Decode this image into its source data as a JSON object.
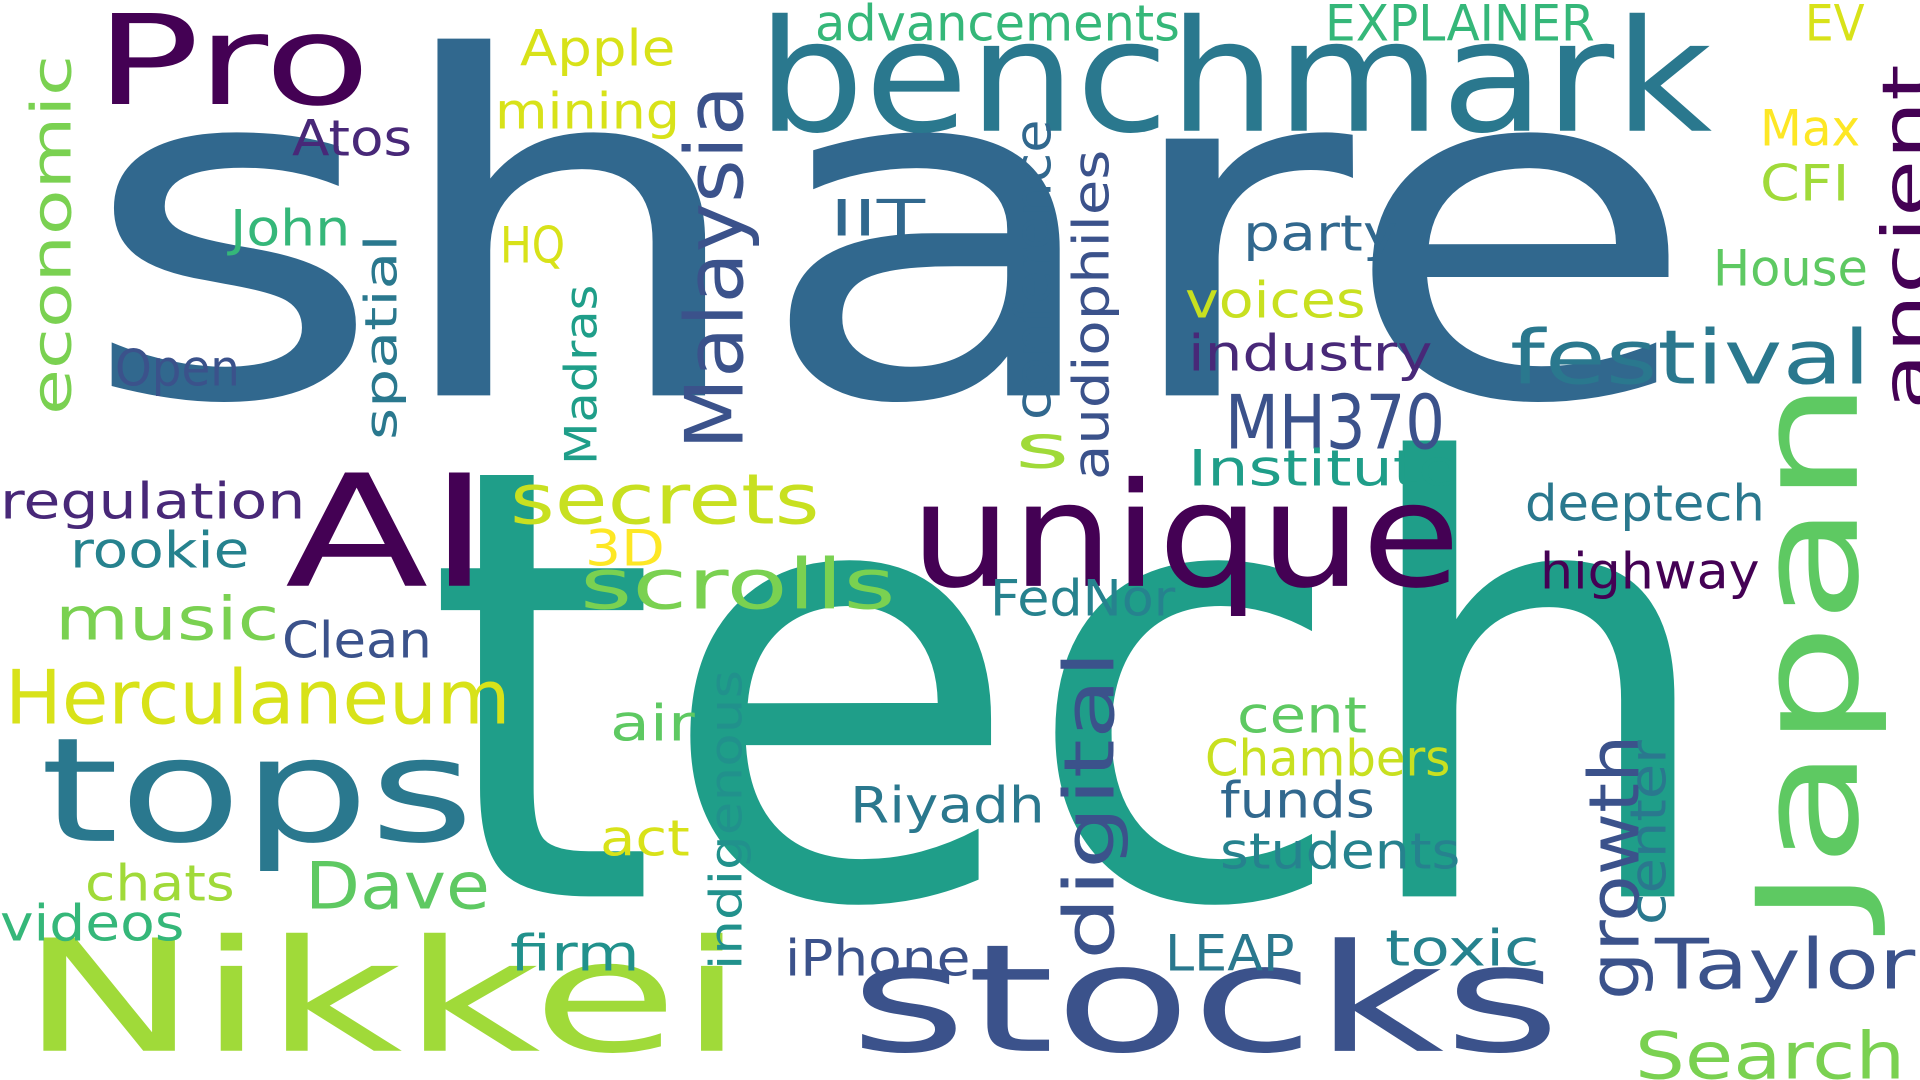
{
  "words": [
    {
      "text": "share",
      "color": "#31688e"
    },
    {
      "text": "tech",
      "color": "#1f9e89"
    },
    {
      "text": "benchmark",
      "color": "#2a788e"
    },
    {
      "text": "Pro",
      "color": "#440154"
    },
    {
      "text": "AI",
      "color": "#440154"
    },
    {
      "text": "unique",
      "color": "#440154"
    },
    {
      "text": "Japan",
      "color": "#5ec962"
    },
    {
      "text": "Nikkei",
      "color": "#a0da39"
    },
    {
      "text": "stocks",
      "color": "#3b528b"
    },
    {
      "text": "tops",
      "color": "#2a788e"
    },
    {
      "text": "Herculaneum",
      "color": "#d8e219"
    },
    {
      "text": "music",
      "color": "#7ad151"
    },
    {
      "text": "scrolls",
      "color": "#7ad151"
    },
    {
      "text": "secrets",
      "color": "#c8e020"
    },
    {
      "text": "Malaysia",
      "color": "#3b528b"
    },
    {
      "text": "festival",
      "color": "#2a788e"
    },
    {
      "text": "ancient",
      "color": "#440154"
    },
    {
      "text": "MH370",
      "color": "#3b528b"
    },
    {
      "text": "digital",
      "color": "#3b528b"
    },
    {
      "text": "growth",
      "color": "#3b528b"
    },
    {
      "text": "Taylor",
      "color": "#3b528b"
    },
    {
      "text": "Search",
      "color": "#7ad151"
    },
    {
      "text": "Dave",
      "color": "#5ec962"
    },
    {
      "text": "economic",
      "color": "#7ad151"
    },
    {
      "text": "advancements",
      "color": "#35b779"
    },
    {
      "text": "EXPLAINER",
      "color": "#35b779"
    },
    {
      "text": "EV",
      "color": "#d8e219"
    },
    {
      "text": "Apple",
      "color": "#d8e219"
    },
    {
      "text": "mining",
      "color": "#d8e219"
    },
    {
      "text": "Atos",
      "color": "#482878"
    },
    {
      "text": "Max",
      "color": "#fde725"
    },
    {
      "text": "CFI",
      "color": "#a0da39"
    },
    {
      "text": "House",
      "color": "#5ec962"
    },
    {
      "text": "John",
      "color": "#35b779"
    },
    {
      "text": "IIT",
      "color": "#31688e"
    },
    {
      "text": "HQ",
      "color": "#d8e219"
    },
    {
      "text": "party",
      "color": "#31688e"
    },
    {
      "text": "spatial",
      "color": "#2a788e"
    },
    {
      "text": "conference",
      "color": "#31688e"
    },
    {
      "text": "audiophiles",
      "color": "#3b528b"
    },
    {
      "text": "voices",
      "color": "#c8e020"
    },
    {
      "text": "industry",
      "color": "#482878"
    },
    {
      "text": "Open",
      "color": "#3b528b"
    },
    {
      "text": "Madras",
      "color": "#1f9e89"
    },
    {
      "text": "s",
      "color": "#a0da39"
    },
    {
      "text": "Institute",
      "color": "#1f9e89"
    },
    {
      "text": "regulation",
      "color": "#482878"
    },
    {
      "text": "deeptech",
      "color": "#2a788e"
    },
    {
      "text": "rookie",
      "color": "#26828e"
    },
    {
      "text": "3D",
      "color": "#fde725"
    },
    {
      "text": "highway",
      "color": "#440154"
    },
    {
      "text": "FedNor",
      "color": "#26828e"
    },
    {
      "text": "Clean",
      "color": "#3b528b"
    },
    {
      "text": "air",
      "color": "#5ec962"
    },
    {
      "text": "cent",
      "color": "#5ec962"
    },
    {
      "text": "indigenous",
      "color": "#21918c"
    },
    {
      "text": "Chambers",
      "color": "#c8e020"
    },
    {
      "text": "Riyadh",
      "color": "#2a788e"
    },
    {
      "text": "funds",
      "color": "#31688e"
    },
    {
      "text": "center",
      "color": "#2a788e"
    },
    {
      "text": "act",
      "color": "#d8e219"
    },
    {
      "text": "students",
      "color": "#26828e"
    },
    {
      "text": "chats",
      "color": "#a0da39"
    },
    {
      "text": "videos",
      "color": "#35b779"
    },
    {
      "text": "firm",
      "color": "#21918c"
    },
    {
      "text": "iPhone",
      "color": "#3b528b"
    },
    {
      "text": "LEAP",
      "color": "#2a788e"
    },
    {
      "text": "toxic",
      "color": "#26828e"
    }
  ]
}
